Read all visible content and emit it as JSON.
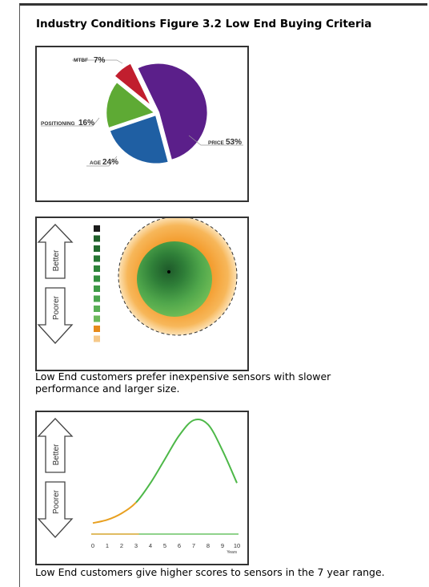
{
  "title": "Industry Conditions Figure 3.2 Low End Buying Criteria",
  "pie": {
    "chart_data": {
      "type": "pie",
      "slices": [
        {
          "label": "PRICE",
          "value": 53,
          "pct_label": "53%",
          "color": "#5B1F8A"
        },
        {
          "label": "AGE",
          "value": 24,
          "pct_label": "24%",
          "color": "#1F5FA3"
        },
        {
          "label": "POSITIONING",
          "value": 16,
          "pct_label": "16%",
          "color": "#5EAA34"
        },
        {
          "label": "MTBF",
          "value": 7,
          "pct_label": "7%",
          "color": "#C11E2E"
        }
      ]
    }
  },
  "target": {
    "better_label": "Better",
    "poorer_label": "Poorer",
    "scale_colors": [
      "#1a1a1a",
      "#1F5F2A",
      "#22692E",
      "#267633",
      "#2D8339",
      "#338F3F",
      "#3E9A46",
      "#4AA54E",
      "#58AF55",
      "#6CB95B",
      "#E68A1A",
      "#F6C98A"
    ],
    "caption": "Low End customers prefer inexpensive sensors with slower performance and larger size."
  },
  "age": {
    "better_label": "Better",
    "poorer_label": "Poorer",
    "chart_data": {
      "type": "line",
      "x": [
        0,
        1,
        2,
        3,
        4,
        5,
        6,
        7,
        8,
        9,
        10
      ],
      "y": [
        0.05,
        0.08,
        0.14,
        0.24,
        0.42,
        0.64,
        0.86,
        1.0,
        0.96,
        0.72,
        0.42
      ],
      "xlabel": "Years",
      "ideal_x": 7,
      "colors": {
        "rising_poor": "#E8A020",
        "rising_good": "#4DB848",
        "axis": "#4DB848"
      }
    },
    "caption": "Low End customers give higher scores to sensors in the 7 year range."
  }
}
